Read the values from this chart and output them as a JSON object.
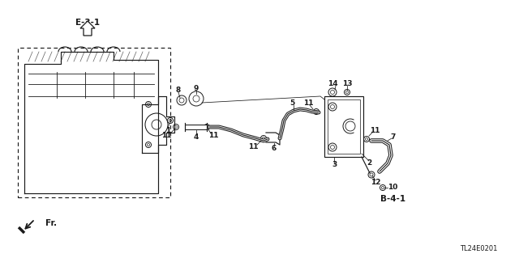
{
  "bg_color": "#ffffff",
  "lc": "#1a1a1a",
  "diagram_code": "TL24E0201",
  "ref_e31": "E-3-1",
  "ref_b41": "B-4-1",
  "fr_label": "Fr.",
  "fig_w": 6.4,
  "fig_h": 3.19,
  "dpi": 100
}
